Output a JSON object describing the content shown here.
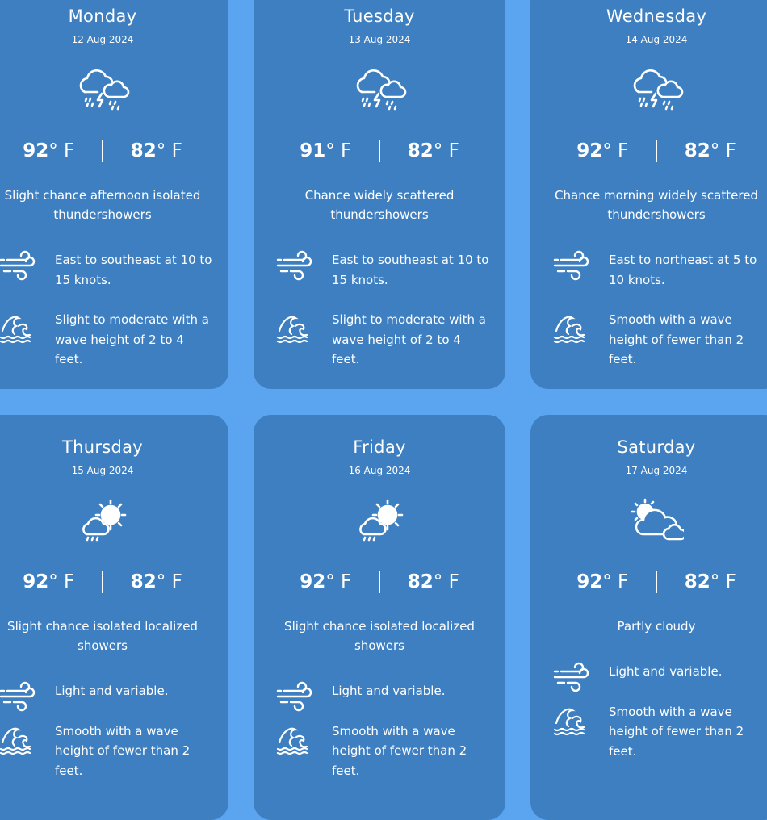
{
  "colors": {
    "background": "#5ba5f0",
    "card": "#3d7fc1",
    "text": "#ffffff"
  },
  "days": [
    {
      "name": "Monday",
      "date": "12 Aug 2024",
      "icon": "thunderstorm-icon",
      "high": "92",
      "low": "82",
      "unit": "° F",
      "description": "Slight chance afternoon isolated thundershowers",
      "wind": "East to southeast at 10 to 15 knots.",
      "waves": "Slight to moderate with a wave height of 2 to 4 feet."
    },
    {
      "name": "Tuesday",
      "date": "13 Aug 2024",
      "icon": "thunderstorm-icon",
      "high": "91",
      "low": "82",
      "unit": "° F",
      "description": "Chance widely scattered thundershowers",
      "wind": "East to southeast at 10 to 15 knots.",
      "waves": "Slight to moderate with a wave height of 2 to 4 feet."
    },
    {
      "name": "Wednesday",
      "date": "14 Aug 2024",
      "icon": "thunderstorm-icon",
      "high": "92",
      "low": "82",
      "unit": "° F",
      "description": "Chance morning widely scattered thundershowers",
      "wind": "East to northeast at 5 to 10 knots.",
      "waves": "Smooth with a wave height of fewer than 2 feet."
    },
    {
      "name": "Thursday",
      "date": "15 Aug 2024",
      "icon": "sun-shower-icon",
      "high": "92",
      "low": "82",
      "unit": "° F",
      "description": "Slight chance isolated localized showers",
      "wind": "Light and variable.",
      "waves": "Smooth with a wave height of fewer than 2 feet."
    },
    {
      "name": "Friday",
      "date": "16 Aug 2024",
      "icon": "sun-shower-icon",
      "high": "92",
      "low": "82",
      "unit": "° F",
      "description": "Slight chance isolated localized showers",
      "wind": "Light and variable.",
      "waves": "Smooth with a wave height of fewer than 2 feet."
    },
    {
      "name": "Saturday",
      "date": "17 Aug 2024",
      "icon": "partly-cloudy-icon",
      "high": "92",
      "low": "82",
      "unit": "° F",
      "description": "Partly cloudy",
      "wind": "Light and variable.",
      "waves": "Smooth with a wave height of fewer than 2 feet."
    }
  ]
}
